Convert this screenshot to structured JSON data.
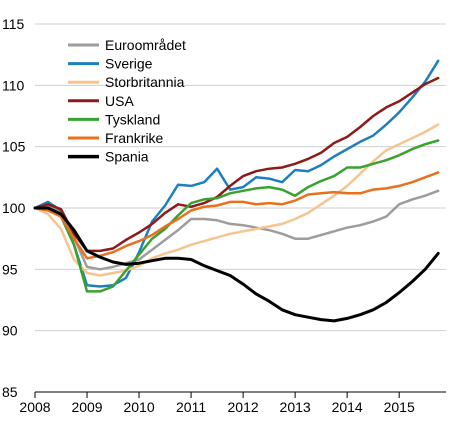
{
  "chart_data": {
    "type": "line",
    "xlim": [
      2008,
      2015.9
    ],
    "ylim": [
      85,
      115
    ],
    "x_ticks": [
      2008,
      2009,
      2010,
      2011,
      2012,
      2013,
      2014,
      2015
    ],
    "x_tick_labels": [
      "2008",
      "2009",
      "2010",
      "2011",
      "2012",
      "2013",
      "2014",
      "2015"
    ],
    "y_ticks": [
      85,
      90,
      95,
      100,
      105,
      110,
      115
    ],
    "y_tick_labels": [
      "85",
      "90",
      "95",
      "100",
      "105",
      "110",
      "115"
    ],
    "grid": "horizontal",
    "legend_placement": "top-left",
    "x": [
      2008.0,
      2008.25,
      2008.5,
      2008.75,
      2009.0,
      2009.25,
      2009.5,
      2009.75,
      2010.0,
      2010.25,
      2010.5,
      2010.75,
      2011.0,
      2011.25,
      2011.5,
      2011.75,
      2012.0,
      2012.25,
      2012.5,
      2012.75,
      2013.0,
      2013.25,
      2013.5,
      2013.75,
      2014.0,
      2014.25,
      2014.5,
      2014.75,
      2015.0,
      2015.25,
      2015.5,
      2015.75
    ],
    "series": [
      {
        "name": "Euroområdet",
        "color": "#9d9d9d",
        "values": [
          100.0,
          100.2,
          99.6,
          97.6,
          95.2,
          95.0,
          95.2,
          95.5,
          95.8,
          96.6,
          97.4,
          98.2,
          99.1,
          99.1,
          99.0,
          98.7,
          98.6,
          98.4,
          98.2,
          97.9,
          97.5,
          97.5,
          97.8,
          98.1,
          98.4,
          98.6,
          98.9,
          99.3,
          100.3,
          100.7,
          101.0,
          101.4
        ]
      },
      {
        "name": "Sverige",
        "color": "#1f7fbd",
        "values": [
          100.0,
          100.5,
          99.8,
          97.0,
          93.7,
          93.6,
          93.7,
          94.3,
          96.4,
          98.9,
          100.2,
          101.9,
          101.8,
          102.1,
          103.2,
          101.5,
          101.7,
          102.5,
          102.4,
          102.1,
          103.1,
          103.0,
          103.5,
          104.2,
          104.8,
          105.4,
          105.9,
          106.8,
          107.8,
          109.0,
          110.3,
          112.0
        ]
      },
      {
        "name": "Storbritannia",
        "color": "#f6c48f",
        "values": [
          100.0,
          99.5,
          98.3,
          95.8,
          94.7,
          94.5,
          94.7,
          94.9,
          95.3,
          95.9,
          96.3,
          96.6,
          97.0,
          97.3,
          97.6,
          97.9,
          98.1,
          98.3,
          98.5,
          98.7,
          99.1,
          99.6,
          100.3,
          101.0,
          101.8,
          102.8,
          103.8,
          104.7,
          105.2,
          105.7,
          106.2,
          106.8
        ]
      },
      {
        "name": "USA",
        "color": "#8c1b1b",
        "values": [
          100.0,
          100.3,
          99.9,
          97.9,
          96.5,
          96.5,
          96.7,
          97.4,
          98.0,
          98.7,
          99.6,
          100.3,
          100.1,
          100.4,
          100.9,
          101.8,
          102.6,
          103.0,
          103.2,
          103.3,
          103.6,
          104.0,
          104.5,
          105.3,
          105.8,
          106.6,
          107.5,
          108.2,
          108.7,
          109.4,
          110.1,
          110.6
        ]
      },
      {
        "name": "Tyskland",
        "color": "#3aa12f",
        "values": [
          100.0,
          99.9,
          99.3,
          97.0,
          93.2,
          93.2,
          93.6,
          94.9,
          96.2,
          97.5,
          98.3,
          99.4,
          100.4,
          100.7,
          100.8,
          101.2,
          101.4,
          101.6,
          101.7,
          101.5,
          101.0,
          101.7,
          102.2,
          102.6,
          103.3,
          103.3,
          103.6,
          103.9,
          104.3,
          104.8,
          105.2,
          105.5
        ]
      },
      {
        "name": "Frankrike",
        "color": "#e9701e",
        "values": [
          100.0,
          99.8,
          99.3,
          97.5,
          95.9,
          96.1,
          96.4,
          96.9,
          97.3,
          97.8,
          98.5,
          99.1,
          99.8,
          100.1,
          100.2,
          100.5,
          100.5,
          100.3,
          100.4,
          100.3,
          100.6,
          101.1,
          101.2,
          101.3,
          101.2,
          101.2,
          101.5,
          101.6,
          101.8,
          102.1,
          102.5,
          102.9
        ]
      },
      {
        "name": "Spania",
        "color": "#000000",
        "values": [
          100.0,
          100.0,
          99.5,
          98.2,
          96.5,
          96.0,
          95.6,
          95.4,
          95.5,
          95.7,
          95.9,
          95.9,
          95.8,
          95.3,
          94.9,
          94.5,
          93.8,
          93.0,
          92.4,
          91.7,
          91.3,
          91.1,
          90.9,
          90.8,
          91.0,
          91.3,
          91.7,
          92.3,
          93.1,
          94.0,
          95.0,
          96.3
        ]
      }
    ]
  }
}
